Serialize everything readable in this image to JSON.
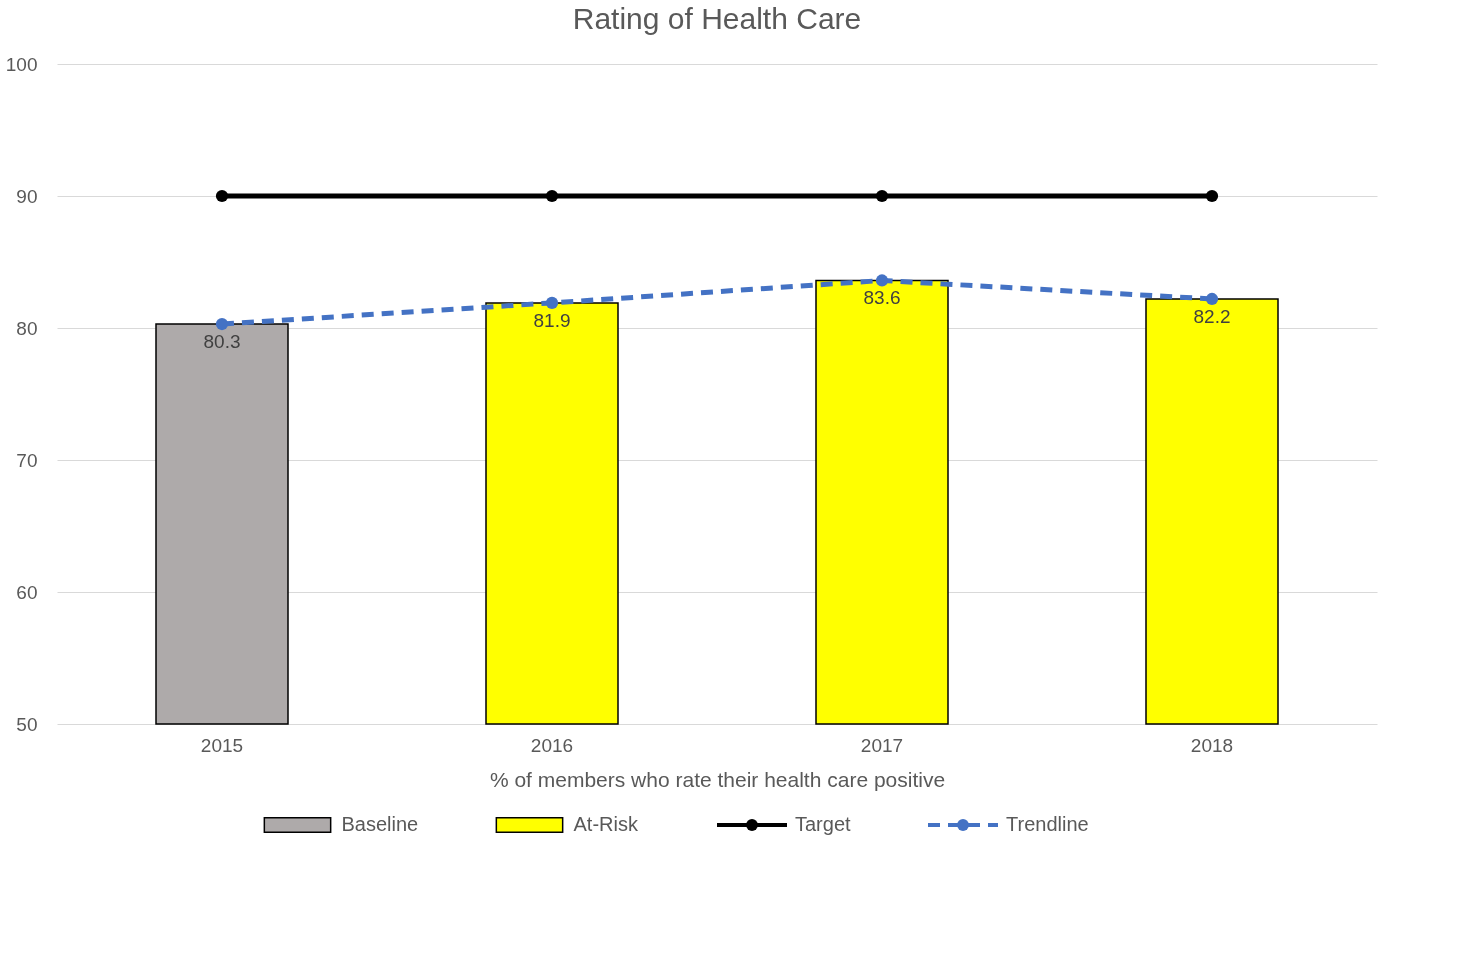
{
  "chart_data": {
    "type": "bar",
    "title": "Rating of Health Care",
    "xlabel": "% of members who rate their health care positive",
    "categories": [
      "2015",
      "2016",
      "2017",
      "2018"
    ],
    "series": [
      {
        "name": "Baseline",
        "color": "#aeaaaa",
        "values": [
          80.3,
          null,
          null,
          null
        ],
        "value_labels": [
          "80.3",
          null,
          null,
          null
        ]
      },
      {
        "name": "At-Risk",
        "color": "#ffff00",
        "values": [
          null,
          81.9,
          83.6,
          82.2
        ],
        "value_labels": [
          null,
          "81.9",
          "83.6",
          "82.2"
        ]
      },
      {
        "name": "Target",
        "type": "line",
        "color": "#000000",
        "marker": "circle",
        "line_style": "solid",
        "values": [
          90,
          90,
          90,
          90
        ]
      },
      {
        "name": "Trendline",
        "type": "line",
        "color": "#4472c4",
        "marker": "circle",
        "line_style": "dashed",
        "values": [
          80.3,
          81.9,
          83.6,
          82.2
        ]
      }
    ],
    "ylim": [
      50,
      100
    ],
    "yticks": [
      50,
      60,
      70,
      80,
      90,
      100
    ],
    "grid": "y",
    "legend": "bottom"
  }
}
